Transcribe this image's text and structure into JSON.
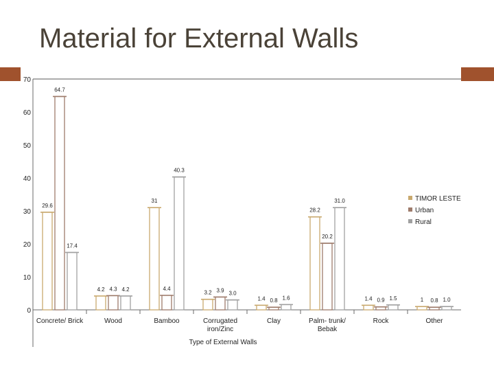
{
  "slide": {
    "title": "Material for External Walls",
    "accent_color": "#a0522d"
  },
  "chart_data": {
    "type": "bar",
    "title": "",
    "xlabel": "Type of External Walls",
    "ylabel": "",
    "ylim": [
      0,
      70
    ],
    "yticks": [
      0,
      10,
      20,
      30,
      40,
      50,
      60,
      70
    ],
    "grid": false,
    "legend_position": "right",
    "categories": [
      "Concrete/ Brick",
      "Wood",
      "Bamboo",
      "Corrugated iron/Zinc",
      "Clay",
      "Palm- trunk/ Bebak",
      "Rock",
      "Other"
    ],
    "series": [
      {
        "name": "TIMOR LESTE",
        "color": "#c9a96e",
        "values": [
          29.6,
          4.2,
          31,
          3.2,
          1.4,
          28.2,
          1.4,
          1
        ]
      },
      {
        "name": "Urban",
        "color": "#9e7b6b",
        "values": [
          64.7,
          4.3,
          4.4,
          3.9,
          0.8,
          20.2,
          0.9,
          0.8
        ]
      },
      {
        "name": "Rural",
        "color": "#a0a0a0",
        "values": [
          17.4,
          4.2,
          40.3,
          3.0,
          1.6,
          31.0,
          1.5,
          1.0
        ]
      }
    ],
    "value_labels": [
      [
        "29.6",
        "4.2",
        "31",
        "3.2",
        "1.4",
        "28.2",
        "1.4",
        "1"
      ],
      [
        "64.7",
        "4.3",
        "4.4",
        "3.9",
        "0.8",
        "20.2",
        "0.9",
        "0.8"
      ],
      [
        "17.4",
        "4.2",
        "40.3",
        "3.0",
        "1.6",
        "31.0",
        "1.5",
        "1.0"
      ]
    ]
  }
}
